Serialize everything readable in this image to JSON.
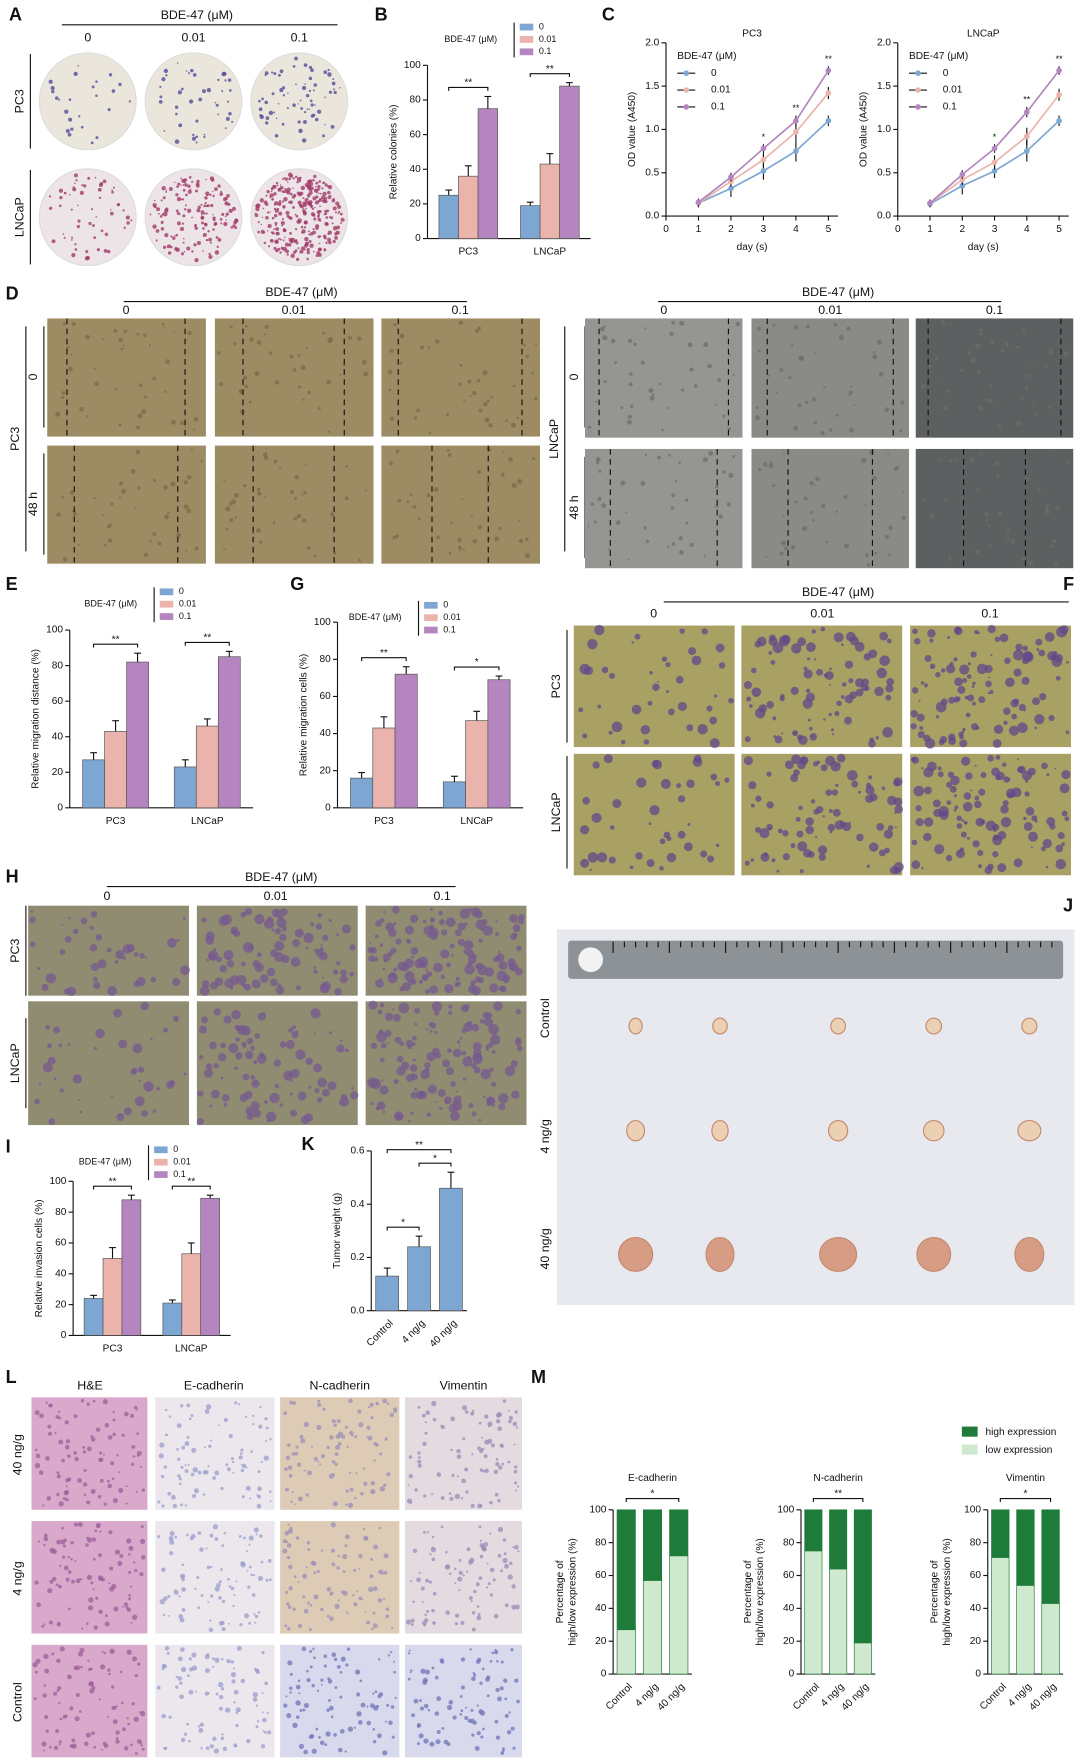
{
  "panel_letters": [
    "A",
    "B",
    "C",
    "D",
    "E",
    "G",
    "F",
    "H",
    "J",
    "I",
    "K",
    "L",
    "M"
  ],
  "image_panels": {
    "A": {
      "header": "BDE-47 (μM)",
      "columns": [
        "0",
        "0.01",
        "0.1"
      ],
      "rows": [
        "PC3",
        "LNCaP"
      ]
    },
    "D": [
      {
        "header": "BDE-47 (μM)",
        "columns": [
          "0",
          "0.01",
          "0.1"
        ],
        "rows": [
          "0",
          "48 h"
        ],
        "cell_line": "PC3"
      },
      {
        "header": "BDE-47 (μM)",
        "columns": [
          "0",
          "0.01",
          "0.1"
        ],
        "rows": [
          "0",
          "48 h"
        ],
        "cell_line": "LNCaP"
      }
    ],
    "F": {
      "header": "BDE-47 (μM)",
      "columns": [
        "0",
        "0.01",
        "0.1"
      ],
      "rows": [
        "PC3",
        "LNCaP"
      ]
    },
    "H": {
      "header": "BDE-47 (μM)",
      "columns": [
        "0",
        "0.01",
        "0.1"
      ],
      "rows": [
        "PC3",
        "LNCaP"
      ]
    },
    "J": {
      "rows": [
        "Control",
        "4 ng/g",
        "40 ng/g"
      ]
    },
    "L": {
      "columns": [
        "H&E",
        "E-cadherin",
        "N-cadherin",
        "Vimentin"
      ],
      "rows": [
        "40 ng/g",
        "4 ng/g",
        "Control"
      ]
    }
  },
  "chart_data": [
    {
      "type": "bar",
      "legend_title": "BDE-47 (μM)",
      "ylabel": "Relative colonies (%)",
      "categories": [
        "PC3",
        "LNCaP"
      ],
      "series": [
        {
          "name": "0",
          "color": "#7ea6d3",
          "values": [
            25,
            19
          ],
          "errors": [
            3,
            2
          ]
        },
        {
          "name": "0.01",
          "color": "#eab3ab",
          "values": [
            36,
            43
          ],
          "errors": [
            6,
            6
          ]
        },
        {
          "name": "0.1",
          "color": "#b585bf",
          "values": [
            75,
            88
          ],
          "errors": [
            7,
            2
          ]
        }
      ],
      "ylim": [
        0,
        100
      ],
      "yticks": [
        0,
        20,
        40,
        60,
        80,
        100
      ],
      "significance": [
        "**",
        "**"
      ]
    },
    {
      "type": "line",
      "title": "PC3",
      "legend_title": "BDE-47 (μM)",
      "xlabel": "day (s)",
      "ylabel": "OD value (A450)",
      "x": [
        1,
        2,
        3,
        4,
        5
      ],
      "series": [
        {
          "name": "0",
          "color": "#7ea6d3",
          "values": [
            0.15,
            0.32,
            0.52,
            0.75,
            1.1
          ],
          "errors": [
            0.05,
            0.1,
            0.1,
            0.12,
            0.06
          ]
        },
        {
          "name": "0.01",
          "color": "#eab3ab",
          "values": [
            0.15,
            0.4,
            0.65,
            0.97,
            1.42
          ],
          "errors": [
            0.04,
            0.06,
            0.08,
            0.1,
            0.07
          ]
        },
        {
          "name": "0.1",
          "color": "#b585bf",
          "values": [
            0.16,
            0.45,
            0.78,
            1.1,
            1.68
          ],
          "errors": [
            0.04,
            0.05,
            0.05,
            0.06,
            0.05
          ]
        }
      ],
      "xlim": [
        0,
        5.3
      ],
      "xticks": [
        0,
        1,
        2,
        3,
        4,
        5
      ],
      "ylim": [
        0,
        2
      ],
      "yticks": [
        {
          "value": 0,
          "label": "0.0"
        },
        0.5,
        {
          "value": 1,
          "label": "1.0"
        },
        1.5,
        {
          "value": 2,
          "label": "2.0"
        }
      ],
      "significance": [
        null,
        null,
        "*",
        "**",
        "**"
      ]
    },
    {
      "type": "line",
      "title": "LNCaP",
      "legend_title": "BDE-47 (μM)",
      "xlabel": "day (s)",
      "ylabel": "OD value (A450)",
      "x": [
        1,
        2,
        3,
        4,
        5
      ],
      "series": [
        {
          "name": "0",
          "color": "#7ea6d3",
          "values": [
            0.14,
            0.35,
            0.52,
            0.75,
            1.1
          ],
          "errors": [
            0.04,
            0.1,
            0.08,
            0.12,
            0.06
          ]
        },
        {
          "name": "0.01",
          "color": "#eab3ab",
          "values": [
            0.15,
            0.42,
            0.62,
            0.92,
            1.4
          ],
          "errors": [
            0.04,
            0.06,
            0.08,
            0.1,
            0.07
          ]
        },
        {
          "name": "0.1",
          "color": "#b585bf",
          "values": [
            0.15,
            0.48,
            0.78,
            1.2,
            1.68
          ],
          "errors": [
            0.04,
            0.05,
            0.05,
            0.06,
            0.05
          ]
        }
      ],
      "xlim": [
        0,
        5.3
      ],
      "xticks": [
        0,
        1,
        2,
        3,
        4,
        5
      ],
      "ylim": [
        0,
        2
      ],
      "yticks": [
        {
          "value": 0,
          "label": "0.0"
        },
        0.5,
        {
          "value": 1,
          "label": "1.0"
        },
        1.5,
        {
          "value": 2,
          "label": "2.0"
        }
      ],
      "significance": [
        null,
        null,
        "*",
        "**",
        "**"
      ]
    },
    {
      "type": "bar",
      "legend_title": "BDE-47 (μM)",
      "ylabel": "Relative migration distance (%)",
      "categories": [
        "PC3",
        "LNCaP"
      ],
      "series": [
        {
          "name": "0",
          "color": "#7ea6d3",
          "values": [
            27,
            23
          ],
          "errors": [
            4,
            4
          ]
        },
        {
          "name": "0.01",
          "color": "#eab3ab",
          "values": [
            43,
            46
          ],
          "errors": [
            6,
            4
          ]
        },
        {
          "name": "0.1",
          "color": "#b585bf",
          "values": [
            82,
            85
          ],
          "errors": [
            5,
            3
          ]
        }
      ],
      "ylim": [
        0,
        100
      ],
      "yticks": [
        0,
        20,
        40,
        60,
        80,
        100
      ],
      "significance": [
        "**",
        "**"
      ]
    },
    {
      "type": "bar",
      "legend_title": "BDE-47 (μM)",
      "ylabel": "Relative migration cells (%)",
      "categories": [
        "PC3",
        "LNCaP"
      ],
      "series": [
        {
          "name": "0",
          "color": "#7ea6d3",
          "values": [
            16,
            14
          ],
          "errors": [
            3,
            3
          ]
        },
        {
          "name": "0.01",
          "color": "#eab3ab",
          "values": [
            43,
            47
          ],
          "errors": [
            6,
            5
          ]
        },
        {
          "name": "0.1",
          "color": "#b585bf",
          "values": [
            72,
            69
          ],
          "errors": [
            4,
            2
          ]
        }
      ],
      "ylim": [
        0,
        100
      ],
      "yticks": [
        0,
        20,
        40,
        60,
        80,
        100
      ],
      "significance": [
        "**",
        "*"
      ]
    },
    {
      "type": "bar",
      "legend_title": "BDE-47 (μM)",
      "ylabel": "Relative invasion cells (%)",
      "categories": [
        "PC3",
        "LNCaP"
      ],
      "series": [
        {
          "name": "0",
          "color": "#7ea6d3",
          "values": [
            24,
            21
          ],
          "errors": [
            2,
            2
          ]
        },
        {
          "name": "0.01",
          "color": "#eab3ab",
          "values": [
            50,
            53
          ],
          "errors": [
            7,
            7
          ]
        },
        {
          "name": "0.1",
          "color": "#b585bf",
          "values": [
            88,
            89
          ],
          "errors": [
            3,
            2
          ]
        }
      ],
      "ylim": [
        0,
        100
      ],
      "yticks": [
        0,
        20,
        40,
        60,
        80,
        100
      ],
      "significance": [
        "**",
        "**"
      ]
    },
    {
      "type": "bar",
      "ylabel": "Tumor weight (g)",
      "categories": [
        "Control",
        "4 ng/g",
        "40 ng/g"
      ],
      "values": [
        0.13,
        0.24,
        0.46
      ],
      "errors": [
        0.03,
        0.04,
        0.06
      ],
      "color": "#7ea6d3",
      "ylim": [
        0,
        0.6
      ],
      "yticks": [
        {
          "value": 0,
          "label": "0.0"
        },
        0.2,
        0.4,
        {
          "value": 0.6,
          "label": "0.6"
        }
      ],
      "significance": [
        {
          "from": 0,
          "to": 1,
          "text": "*"
        },
        {
          "from": 1,
          "to": 2,
          "text": "*"
        },
        {
          "from": 0,
          "to": 2,
          "text": "**"
        }
      ]
    },
    {
      "type": "stacked_bar",
      "title": "E-cadherin",
      "legend": "top-right",
      "ylabel": [
        "Percentage of",
        "high/low expression (%)"
      ],
      "categories": [
        "Control",
        "4 ng/g",
        "40 ng/g"
      ],
      "series": [
        {
          "name": "low expression",
          "color": "#cfe9cf",
          "values": [
            27,
            57,
            72
          ]
        },
        {
          "name": "high expression",
          "color": "#1e7b3a",
          "values": [
            73,
            43,
            28
          ]
        }
      ],
      "ylim": [
        0,
        100
      ],
      "yticks": [
        0,
        20,
        40,
        60,
        80,
        100
      ],
      "significance": "*"
    },
    {
      "type": "stacked_bar",
      "title": "N-cadherin",
      "ylabel": [
        "Percentage of",
        "high/low expression (%)"
      ],
      "categories": [
        "Control",
        "4 ng/g",
        "40 ng/g"
      ],
      "series": [
        {
          "name": "low expression",
          "color": "#cfe9cf",
          "values": [
            75,
            64,
            19
          ]
        },
        {
          "name": "high expression",
          "color": "#1e7b3a",
          "values": [
            25,
            36,
            81
          ]
        }
      ],
      "ylim": [
        0,
        100
      ],
      "yticks": [
        0,
        20,
        40,
        60,
        80,
        100
      ],
      "significance": "**"
    },
    {
      "type": "stacked_bar",
      "title": "Vimentin",
      "ylabel": [
        "Percentage of",
        "high/low expression (%)"
      ],
      "categories": [
        "Control",
        "4 ng/g",
        "40 ng/g"
      ],
      "series": [
        {
          "name": "low expression",
          "color": "#cfe9cf",
          "values": [
            71,
            54,
            43
          ]
        },
        {
          "name": "high expression",
          "color": "#1e7b3a",
          "values": [
            29,
            46,
            57
          ]
        }
      ],
      "ylim": [
        0,
        100
      ],
      "yticks": [
        0,
        20,
        40,
        60,
        80,
        100
      ],
      "significance": "*"
    }
  ]
}
